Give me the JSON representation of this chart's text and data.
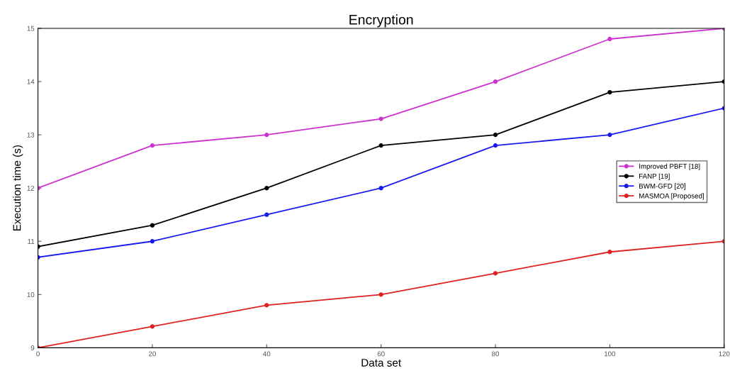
{
  "chart_data": {
    "type": "line",
    "title": "Encryption",
    "xlabel": "Data set",
    "ylabel": "Execution time (s)",
    "x": [
      0,
      20,
      40,
      60,
      80,
      100,
      120
    ],
    "xlim": [
      0,
      120
    ],
    "xticks": [
      0,
      20,
      40,
      60,
      80,
      100,
      120
    ],
    "ylim": [
      9,
      15
    ],
    "yticks": [
      9,
      10,
      11,
      12,
      13,
      14,
      15
    ],
    "grid": false,
    "legend": "right",
    "marker": "circle",
    "line_style": "solid",
    "series": [
      {
        "name": "Improved PBFT [18]",
        "color": "#cc33cc",
        "values": [
          12,
          12.8,
          13,
          13.3,
          14,
          14.8,
          15
        ]
      },
      {
        "name": "FANP [19]",
        "color": "#000000",
        "values": [
          10.9,
          11.3,
          12,
          12.8,
          13,
          13.8,
          14
        ]
      },
      {
        "name": "BWM-GFD [20]",
        "color": "#1a1aee",
        "values": [
          10.7,
          11,
          11.5,
          12,
          12.8,
          13,
          13.5
        ]
      },
      {
        "name": "MASMOA [Proposed]",
        "color": "#dd2222",
        "values": [
          9,
          9.4,
          9.8,
          10,
          10.4,
          10.8,
          11
        ]
      }
    ]
  }
}
